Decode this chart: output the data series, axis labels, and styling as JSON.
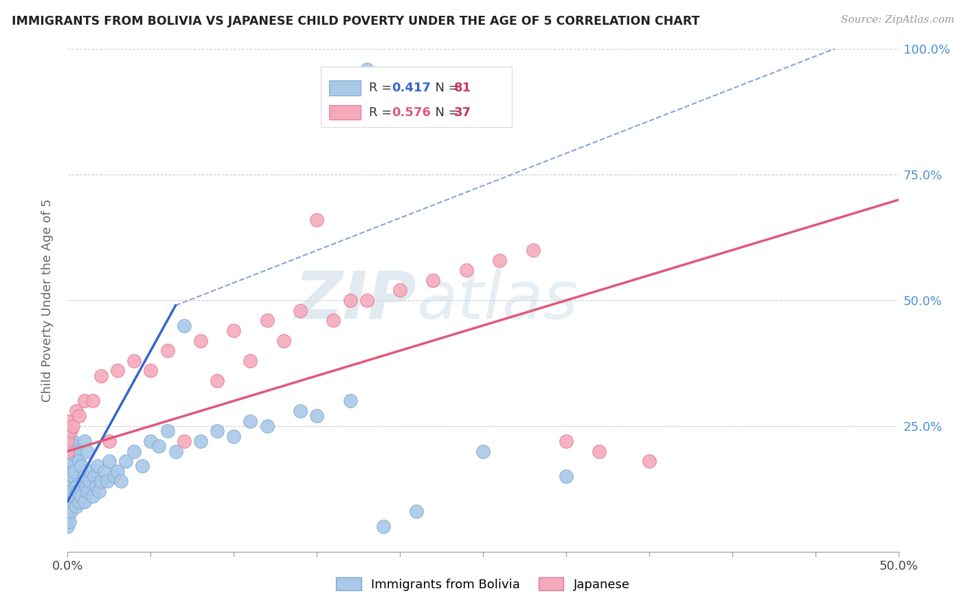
{
  "title": "IMMIGRANTS FROM BOLIVIA VS JAPANESE CHILD POVERTY UNDER THE AGE OF 5 CORRELATION CHART",
  "source": "Source: ZipAtlas.com",
  "ylabel": "Child Poverty Under the Age of 5",
  "xlim": [
    0,
    0.5
  ],
  "ylim": [
    0,
    1.0
  ],
  "ytick_positions": [
    0.0,
    0.25,
    0.5,
    0.75,
    1.0
  ],
  "yticklabels_right": [
    "",
    "25.0%",
    "50.0%",
    "75.0%",
    "100.0%"
  ],
  "bolivia_color": "#aac8e8",
  "japanese_color": "#f5aabb",
  "bolivia_edge": "#7aaad0",
  "japanese_edge": "#e07898",
  "line_bolivia_color": "#3366cc",
  "line_japanese_color": "#e05878",
  "watermark_zip": "ZIP",
  "watermark_atlas": "atlas",
  "R_bolivia": "0.417",
  "N_bolivia": "81",
  "R_japanese": "0.576",
  "N_japanese": "37",
  "legend_r_color": "#3366cc",
  "legend_n_color": "#cc3366",
  "legend_box_color": "#dddddd"
}
